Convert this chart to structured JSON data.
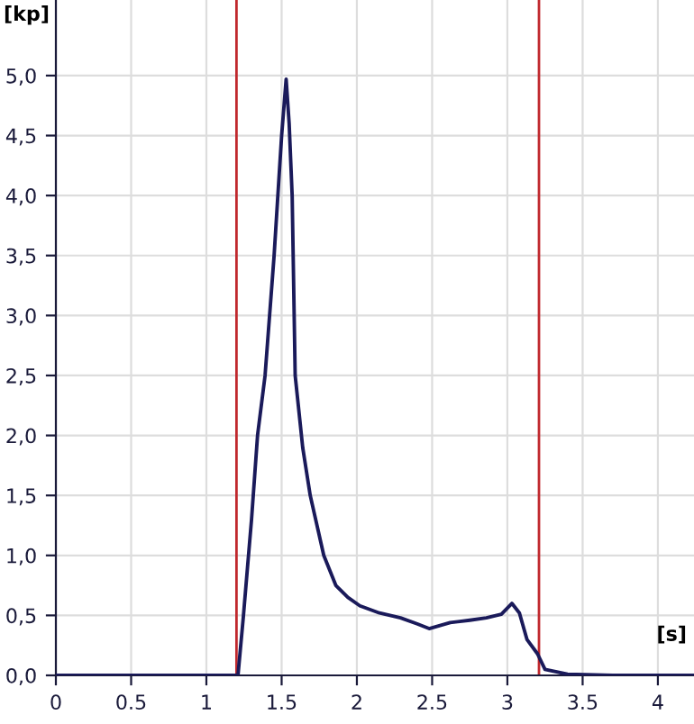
{
  "chart_data": {
    "type": "line",
    "xlabel": "[s]",
    "ylabel": "[kp]",
    "x": [
      0,
      0.3,
      0.6,
      0.9,
      1.21,
      1.245,
      1.3,
      1.34,
      1.39,
      1.45,
      1.5,
      1.53,
      1.55,
      1.57,
      1.59,
      1.64,
      1.69,
      1.78,
      1.86,
      1.94,
      2.02,
      2.15,
      2.29,
      2.4,
      2.48,
      2.62,
      2.75,
      2.86,
      2.96,
      3.03,
      3.08,
      3.13,
      3.2,
      3.25,
      3.4,
      3.7,
      4.0,
      4.24
    ],
    "series": [
      {
        "color": "#1a1a5a",
        "values": [
          0,
          0,
          0,
          0,
          0,
          0.48,
          1.3,
          2.0,
          2.5,
          3.5,
          4.5,
          4.97,
          4.6,
          4.0,
          2.5,
          1.9,
          1.5,
          1.0,
          0.75,
          0.65,
          0.58,
          0.52,
          0.48,
          0.43,
          0.39,
          0.44,
          0.46,
          0.48,
          0.51,
          0.6,
          0.52,
          0.3,
          0.18,
          0.05,
          0.01,
          0,
          0,
          0
        ]
      }
    ],
    "xlim": [
      0,
      4.24
    ],
    "ylim": [
      0,
      5.63
    ],
    "xticks": [
      0,
      0.5,
      1,
      1.5,
      2,
      2.5,
      3,
      3.5,
      4
    ],
    "yticks": [
      {
        "value": 0,
        "label": "0,0"
      },
      {
        "value": 0.5,
        "label": "0,5"
      },
      {
        "value": 1,
        "label": "1,0"
      },
      {
        "value": 1.5,
        "label": "1,5"
      },
      {
        "value": 2,
        "label": "2,0"
      },
      {
        "value": 2.5,
        "label": "2,5"
      },
      {
        "value": 3,
        "label": "3,0"
      },
      {
        "value": 3.5,
        "label": "3,5"
      },
      {
        "value": 4,
        "label": "4,0"
      },
      {
        "value": 4.5,
        "label": "4,5"
      },
      {
        "value": 5,
        "label": "5,0"
      }
    ],
    "ref_lines": [
      {
        "axis": "x",
        "value": 1.2,
        "color": "#c0282d"
      },
      {
        "axis": "x",
        "value": 3.21,
        "color": "#c0282d"
      }
    ],
    "grid": true,
    "legend": false,
    "marker": "none",
    "line_style": "solid"
  }
}
